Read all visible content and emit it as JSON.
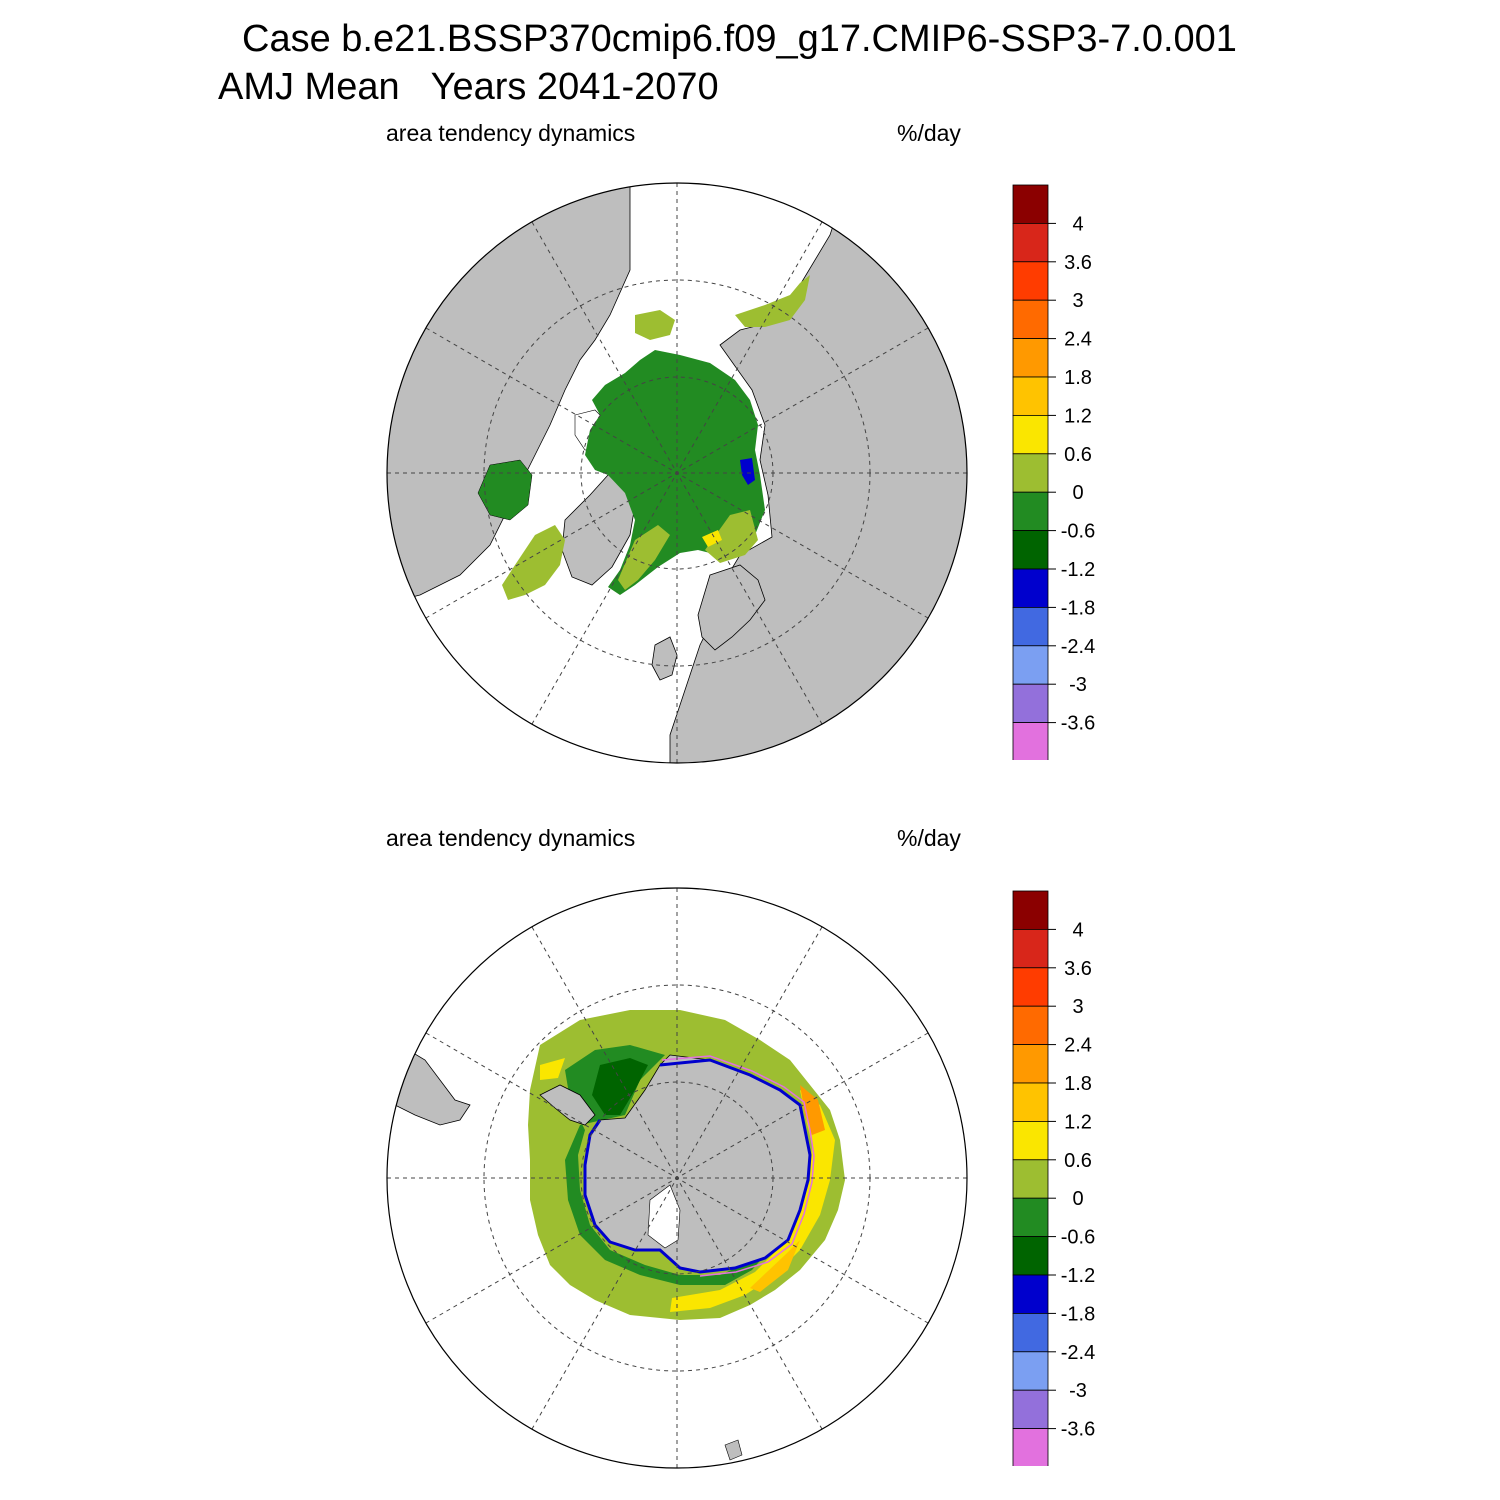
{
  "header": {
    "title_line1": "Case b.e21.BSSP370cmip6.f09_g17.CMIP6-SSP3-7.0.001",
    "title_line2": "AMJ Mean   Years 2041-2070"
  },
  "panels": [
    {
      "id": "north",
      "left_label": "area tendency dynamics",
      "right_label": "%/day",
      "hemisphere": "northern"
    },
    {
      "id": "south",
      "left_label": "area tendency dynamics",
      "right_label": "%/day",
      "hemisphere": "southern"
    }
  ],
  "colorbar": {
    "units": "%/day",
    "levels": [
      "4",
      "3.6",
      "3",
      "2.4",
      "1.8",
      "1.2",
      "0.6",
      "0",
      "-0.6",
      "-1.2",
      "-1.8",
      "-2.4",
      "-3",
      "-3.6"
    ],
    "colors": [
      "#8b0000",
      "#d8261a",
      "#ff3c00",
      "#ff6a00",
      "#ff9900",
      "#ffc300",
      "#fae600",
      "#9dbe31",
      "#228b22",
      "#006400",
      "#0000cd",
      "#4169e1",
      "#7b9ff2",
      "#9370db",
      "#e271de"
    ]
  },
  "map_colors": {
    "land": "#bebebe",
    "ocean_no_ice": "#ffffff",
    "grid": "#444444"
  }
}
